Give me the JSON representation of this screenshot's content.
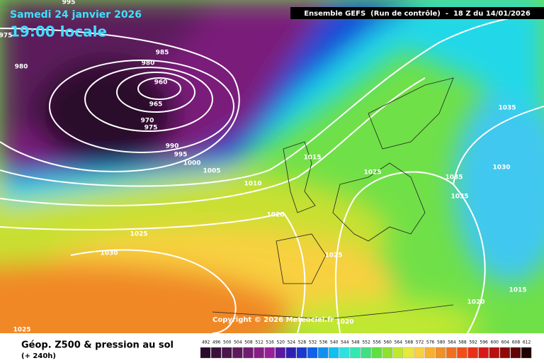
{
  "header": {
    "date": "Samedi 24 janvier 2026",
    "time": "19:00 locale",
    "model": "Ensemble GEFS  (Run de contrôle)  -  18 Z du 14/01/2026"
  },
  "isobar_labels": [
    995,
    975,
    980,
    985,
    980,
    960,
    965,
    970,
    975,
    990,
    995,
    1000,
    1005,
    1010,
    1015,
    1025,
    1020,
    1025,
    1030,
    1025,
    1035,
    1030,
    1035,
    1035,
    1015,
    1020,
    1020,
    1025
  ],
  "copyright": "Copyright © 2026 Meteociel.fr",
  "legend": {
    "title": "Géop. Z500 & pression au sol",
    "lead": "(+ 240h)",
    "scale": [
      {
        "value": 492,
        "color": "#2a0a2a"
      },
      {
        "value": 496,
        "color": "#3a0f3a"
      },
      {
        "value": 500,
        "color": "#4a154a"
      },
      {
        "value": 504,
        "color": "#5c1a5c"
      },
      {
        "value": 508,
        "color": "#701c70"
      },
      {
        "value": 512,
        "color": "#861e86"
      },
      {
        "value": 516,
        "color": "#9a1e9a"
      },
      {
        "value": 520,
        "color": "#5a1aa0"
      },
      {
        "value": 524,
        "color": "#3020b0"
      },
      {
        "value": 528,
        "color": "#1838d0"
      },
      {
        "value": 532,
        "color": "#1060e8"
      },
      {
        "value": 536,
        "color": "#1090f0"
      },
      {
        "value": 540,
        "color": "#10c0f0"
      },
      {
        "value": 544,
        "color": "#30e0e0"
      },
      {
        "value": 548,
        "color": "#30e8b0"
      },
      {
        "value": 552,
        "color": "#40e080"
      },
      {
        "value": 556,
        "color": "#60e040"
      },
      {
        "value": 560,
        "color": "#90e030"
      },
      {
        "value": 564,
        "color": "#c0e830"
      },
      {
        "value": 568,
        "color": "#e8e840"
      },
      {
        "value": 572,
        "color": "#f8d040"
      },
      {
        "value": 576,
        "color": "#f8b030"
      },
      {
        "value": 580,
        "color": "#f09028"
      },
      {
        "value": 584,
        "color": "#f07020"
      },
      {
        "value": 588,
        "color": "#f05018"
      },
      {
        "value": 592,
        "color": "#e83018"
      },
      {
        "value": 596,
        "color": "#d81818"
      },
      {
        "value": 600,
        "color": "#b81010"
      },
      {
        "value": 604,
        "color": "#900808"
      },
      {
        "value": 608,
        "color": "#600404"
      },
      {
        "value": 612,
        "color": "#200000"
      }
    ]
  }
}
